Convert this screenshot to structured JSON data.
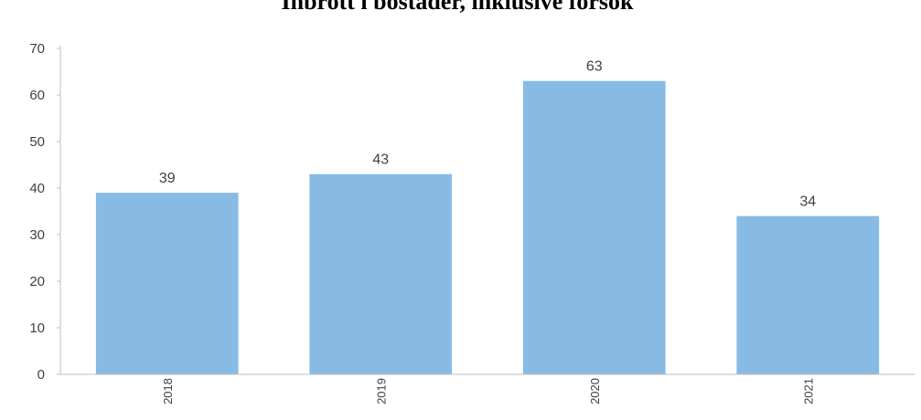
{
  "chart_data": {
    "type": "bar",
    "title": "Inbrott i bostäder, inklusive försök",
    "xlabel": "",
    "ylabel": "",
    "categories": [
      "2018",
      "2019",
      "2020",
      "2021"
    ],
    "values": [
      39,
      43,
      63,
      34
    ],
    "data_labels": [
      "39",
      "43",
      "63",
      "34"
    ],
    "ylim": [
      0,
      70
    ],
    "yticks": [
      0,
      10,
      20,
      30,
      40,
      50,
      60,
      70
    ],
    "grid": false,
    "legend": "none",
    "bar_color": "#88bbe4",
    "axis_color": "#bfbfbf",
    "text_color": "#404040"
  }
}
